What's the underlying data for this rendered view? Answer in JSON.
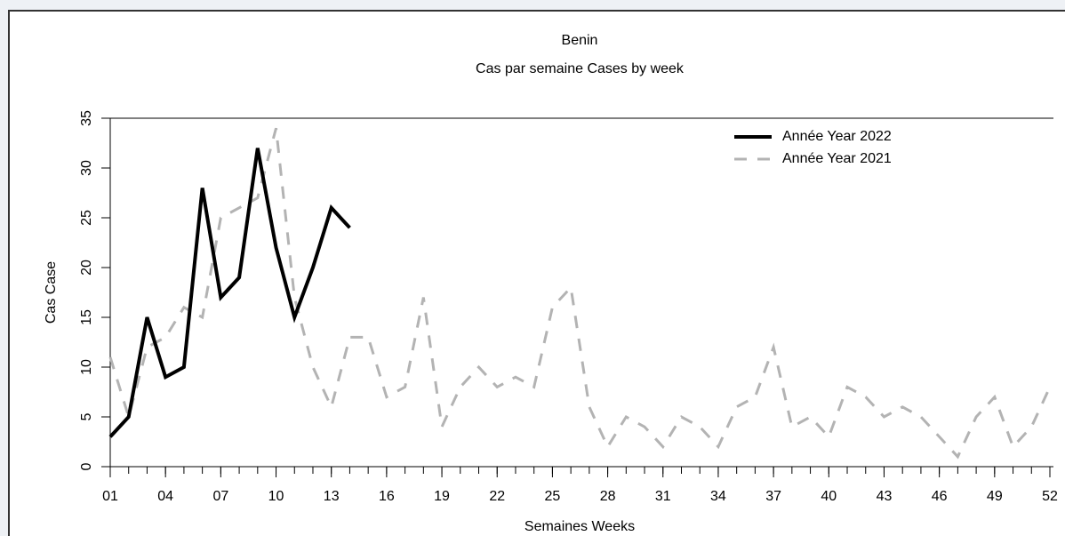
{
  "chart_data": {
    "type": "line",
    "title": "Benin",
    "subtitle": "Cas par semaine Cases by week",
    "x_label": "Semaines Weeks",
    "y_label": "Cas Case",
    "x": [
      1,
      2,
      3,
      4,
      5,
      6,
      7,
      8,
      9,
      10,
      11,
      12,
      13,
      14,
      15,
      16,
      17,
      18,
      19,
      20,
      21,
      22,
      23,
      24,
      25,
      26,
      27,
      28,
      29,
      30,
      31,
      32,
      33,
      34,
      35,
      36,
      37,
      38,
      39,
      40,
      41,
      42,
      43,
      44,
      45,
      46,
      47,
      48,
      49,
      50,
      51,
      52
    ],
    "xlim": [
      1,
      52
    ],
    "xticks": [
      {
        "value": 1,
        "label": "01"
      },
      {
        "value": 4,
        "label": "04"
      },
      {
        "value": 7,
        "label": "07"
      },
      10,
      13,
      16,
      19,
      22,
      25,
      28,
      31,
      34,
      37,
      40,
      43,
      46,
      49,
      52
    ],
    "ylim": [
      0,
      35
    ],
    "yticks": [
      0,
      5,
      10,
      15,
      20,
      25,
      30,
      35
    ],
    "legend": "top-right",
    "series": [
      {
        "name": "Année Year 2022",
        "color": "#000000",
        "style": "solid",
        "values": [
          3,
          5,
          15,
          9,
          10,
          28,
          17,
          19,
          32,
          22,
          15,
          20,
          26,
          24,
          null,
          null,
          null,
          null,
          null,
          null,
          null,
          null,
          null,
          null,
          null,
          null,
          null,
          null,
          null,
          null,
          null,
          null,
          null,
          null,
          null,
          null,
          null,
          null,
          null,
          null,
          null,
          null,
          null,
          null,
          null,
          null,
          null,
          null,
          null,
          null,
          null,
          null
        ]
      },
      {
        "name": "Année Year 2021",
        "color": "#b3b3b3",
        "style": "dashed",
        "values": [
          11,
          5,
          12,
          13,
          16,
          15,
          25,
          26,
          27,
          34,
          17,
          10,
          6,
          13,
          13,
          7,
          8,
          17,
          4,
          8,
          10,
          8,
          9,
          8,
          16,
          18,
          6,
          2,
          5,
          4,
          2,
          5,
          4,
          2,
          6,
          7,
          12,
          4,
          5,
          3,
          8,
          7,
          5,
          6,
          5,
          3,
          1,
          5,
          7,
          2,
          4,
          8
        ]
      }
    ]
  }
}
